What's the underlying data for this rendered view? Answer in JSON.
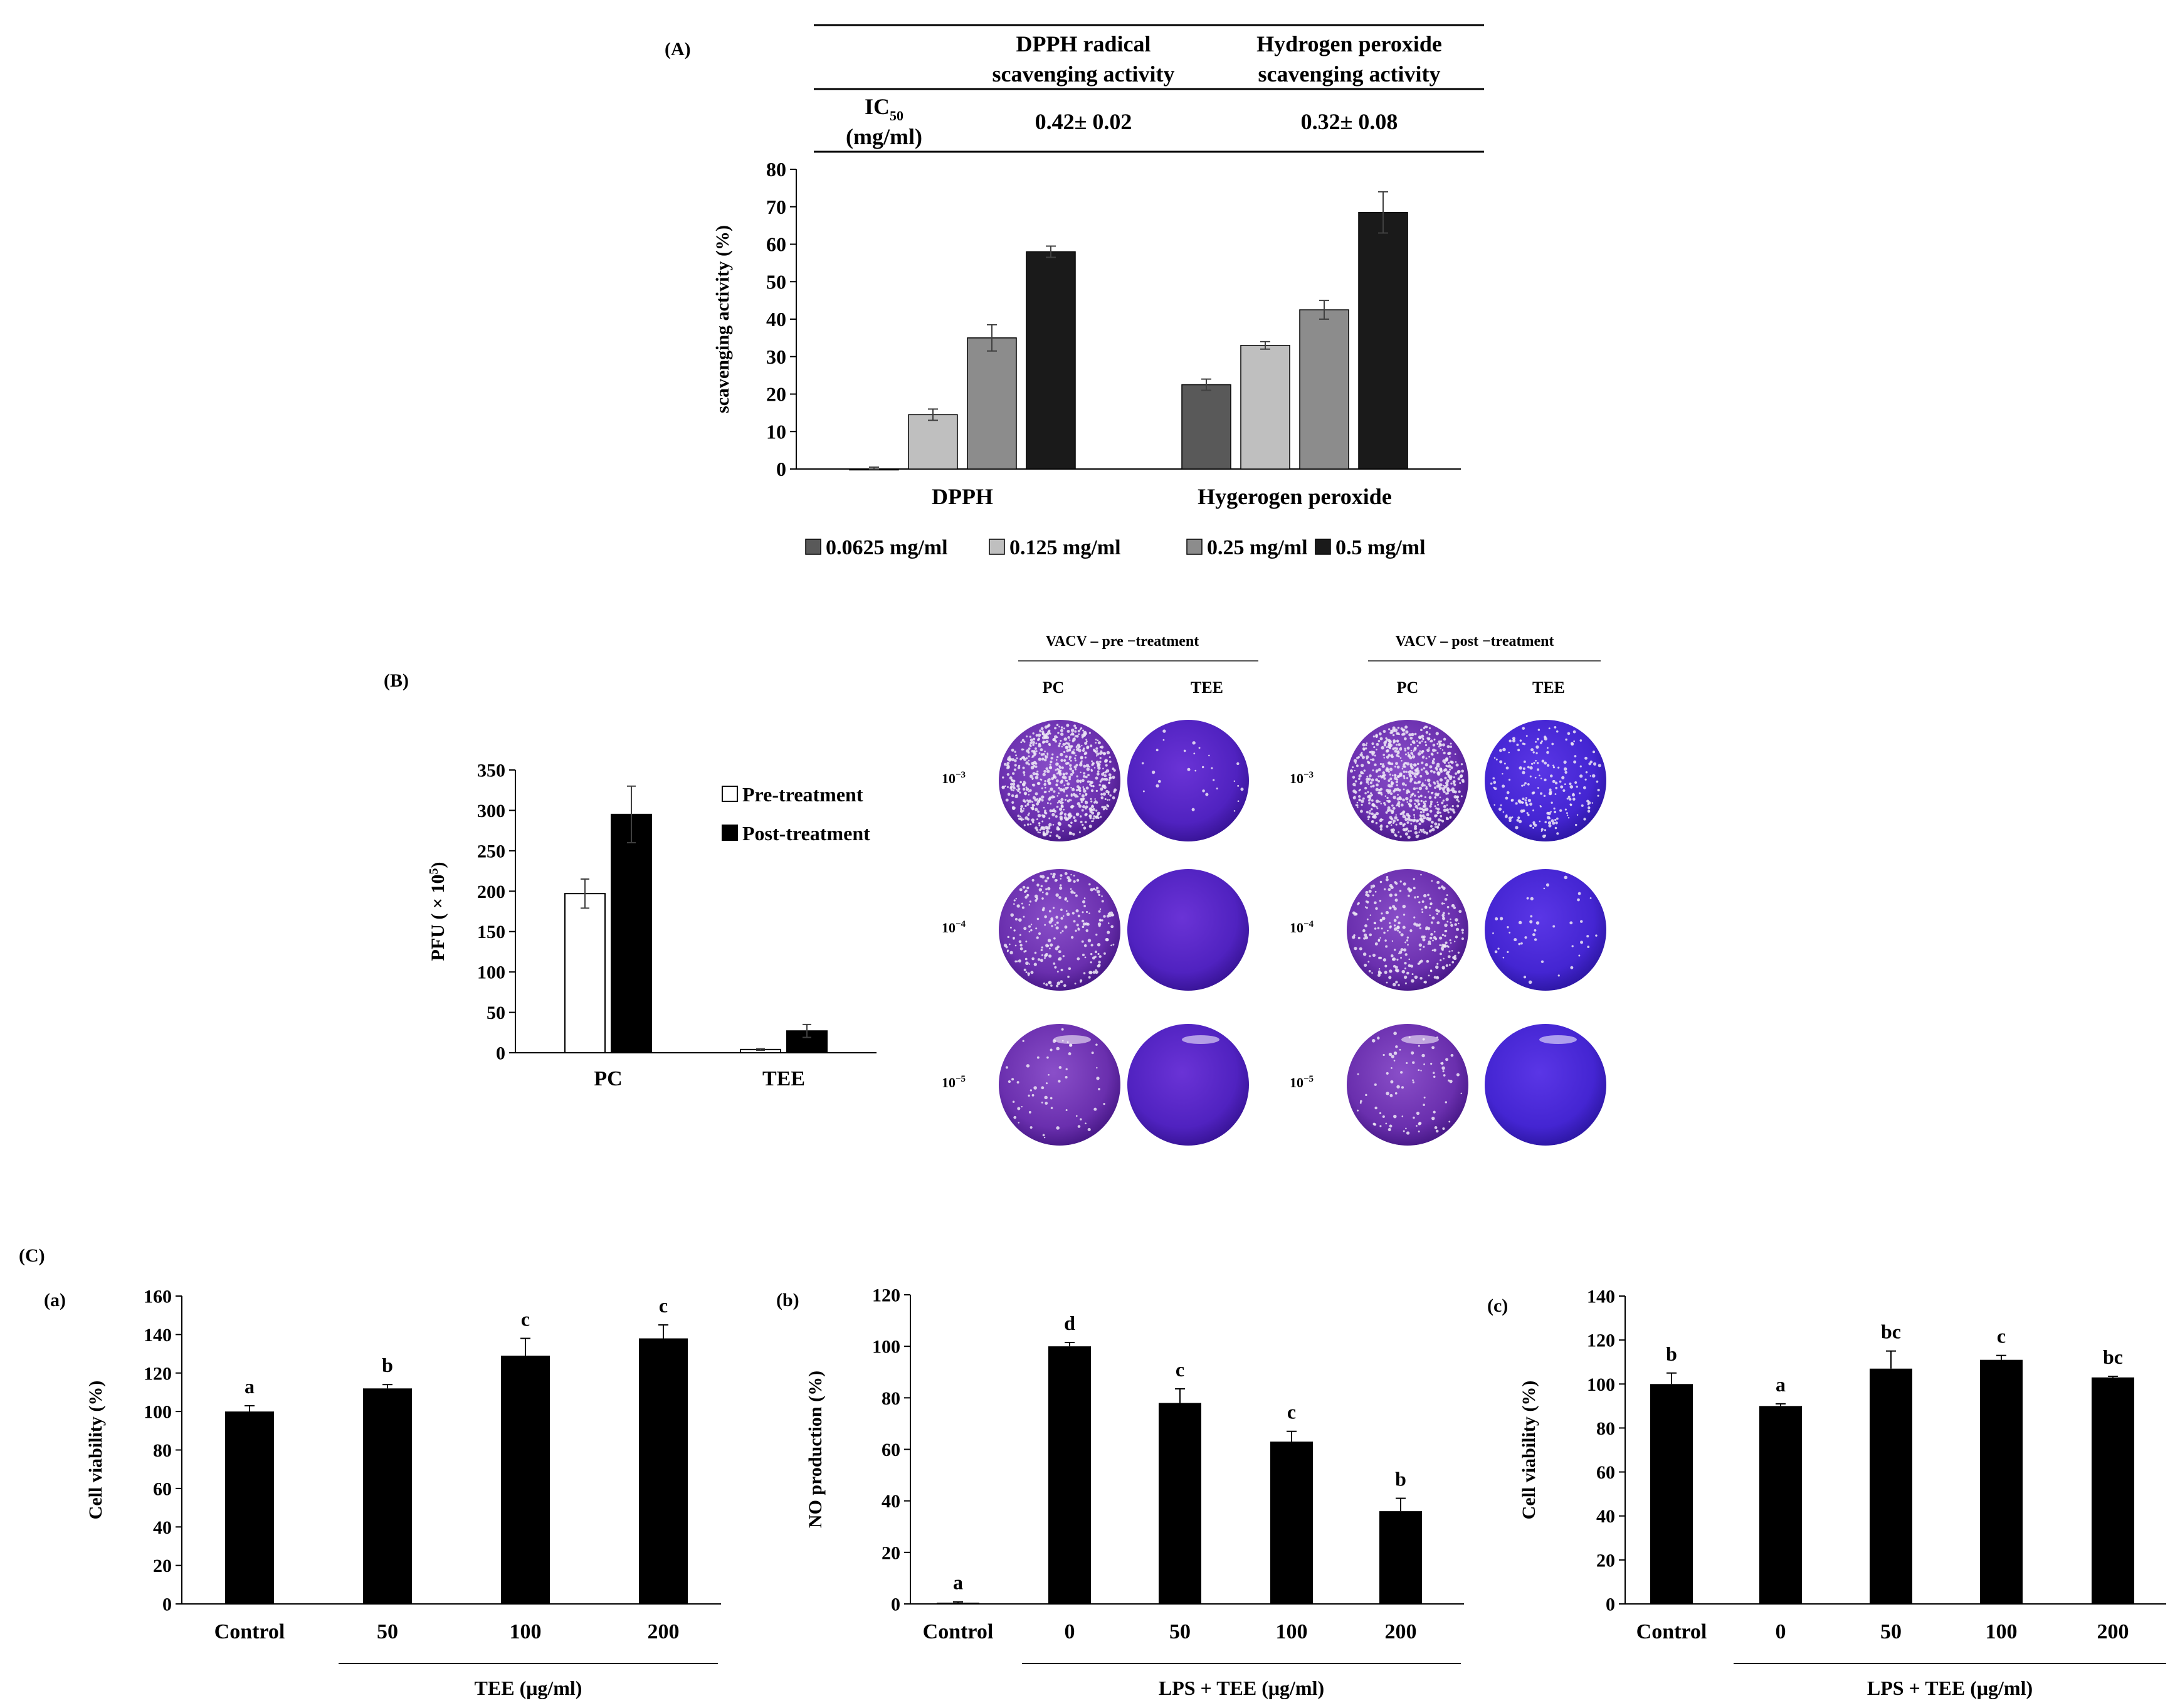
{
  "labels": {
    "A": "(A)",
    "B": "(B)",
    "C": "(C)",
    "Ca": "(a)",
    "Cb": "(b)",
    "Cc": "(c)"
  },
  "ic50_table": {
    "col1_line1": "DPPH radical",
    "col1_line2": "scavenging activity",
    "col2_line1": "Hydrogen peroxide",
    "col2_line2": "scavenging activity",
    "row_label_ic": "IC",
    "row_label_sub": "50",
    "row_label_unit": "(mg/ml)",
    "dpph_value": "0.42± 0.02",
    "h2o2_value": "0.32± 0.08"
  },
  "colors": {
    "c1": "#595959",
    "c2": "#bfbfbf",
    "c3": "#8c8c8c",
    "c4": "#1a1a1a",
    "black": "#000000",
    "white": "#ffffff"
  },
  "chart_data": [
    {
      "id": "A",
      "type": "bar",
      "title": "",
      "ylabel": "scavenging activity (%)",
      "ylim": [
        0,
        80
      ],
      "yticks": [
        "0",
        "10",
        "20",
        "30",
        "40",
        "50",
        "60",
        "70",
        "80"
      ],
      "categories": [
        "DPPH",
        "Hygerogen peroxide"
      ],
      "series": [
        {
          "name": "0.0625 mg/ml",
          "values": [
            0,
            22.5
          ],
          "errors": [
            0.5,
            1.5
          ]
        },
        {
          "name": "0.125 mg/ml",
          "values": [
            14.5,
            33
          ],
          "errors": [
            1.5,
            1
          ]
        },
        {
          "name": "0.25 mg/ml",
          "values": [
            35,
            42.5
          ],
          "errors": [
            3.5,
            2.5
          ]
        },
        {
          "name": "0.5 mg/ml",
          "values": [
            58,
            68.5
          ],
          "errors": [
            1.5,
            5.5
          ]
        }
      ],
      "legend": "bottom"
    },
    {
      "id": "B",
      "type": "bar",
      "ylabel_main": "PFU ( × 10",
      "ylabel_sup": "5",
      "ylabel_end": ")",
      "ylim": [
        0,
        350
      ],
      "yticks": [
        "0",
        "50",
        "100",
        "150",
        "200",
        "250",
        "300",
        "350"
      ],
      "categories": [
        "PC",
        "TEE"
      ],
      "series": [
        {
          "name": "Pre-treatment",
          "values": [
            197,
            4
          ],
          "errors": [
            18,
            1
          ]
        },
        {
          "name": "Post-treatment",
          "values": [
            295,
            27
          ],
          "errors": [
            35,
            8
          ]
        }
      ],
      "legend": "top-right"
    },
    {
      "id": "Ca",
      "type": "bar",
      "ylabel": "Cell viability (%)",
      "ylim": [
        0,
        160
      ],
      "yticks": [
        "0",
        "20",
        "40",
        "60",
        "80",
        "100",
        "120",
        "140",
        "160"
      ],
      "categories": [
        "Control",
        "50",
        "100",
        "200"
      ],
      "values": [
        100,
        112,
        129,
        138
      ],
      "errors": [
        3,
        2,
        9,
        7
      ],
      "letters": [
        "a",
        "b",
        "c",
        "c"
      ],
      "group_label": "TEE (μg/ml)"
    },
    {
      "id": "Cb",
      "type": "bar",
      "ylabel": "NO production (%)",
      "ylim": [
        0,
        120
      ],
      "yticks": [
        "0",
        "20",
        "40",
        "60",
        "80",
        "100",
        "120"
      ],
      "categories": [
        "Control",
        "0",
        "50",
        "100",
        "200"
      ],
      "values": [
        0.5,
        100,
        78,
        63,
        36
      ],
      "errors": [
        0.3,
        1.5,
        5.5,
        4,
        5
      ],
      "letters": [
        "a",
        "d",
        "c",
        "c",
        "b"
      ],
      "group_label": "LPS + TEE (μg/ml)"
    },
    {
      "id": "Cc",
      "type": "bar",
      "ylabel": "Cell viability (%)",
      "ylim": [
        0,
        140
      ],
      "yticks": [
        "0",
        "20",
        "40",
        "60",
        "80",
        "100",
        "120",
        "140"
      ],
      "categories": [
        "Control",
        "0",
        "50",
        "100",
        "200"
      ],
      "values": [
        100,
        90,
        107,
        111,
        103
      ],
      "errors": [
        5,
        1,
        8,
        2,
        0.5
      ],
      "letters": [
        "b",
        "a",
        "bc",
        "c",
        "bc"
      ],
      "group_label": "LPS + TEE (μg/ml)"
    }
  ],
  "plaque_panel": {
    "pre_header": "VACV – pre −treatment",
    "post_header": "VACV – post −treatment",
    "col_pc": "PC",
    "col_tee": "TEE",
    "dilution_base": "10",
    "dilution_exps": [
      "−3",
      "−4",
      "−5"
    ],
    "density_pre_pc": [
      1.0,
      0.35,
      0.08
    ],
    "density_pre_tee": [
      0.04,
      0.0,
      0.0
    ],
    "density_post_pc": [
      1.0,
      0.4,
      0.12
    ],
    "density_post_tee": [
      0.3,
      0.06,
      0.0
    ]
  }
}
